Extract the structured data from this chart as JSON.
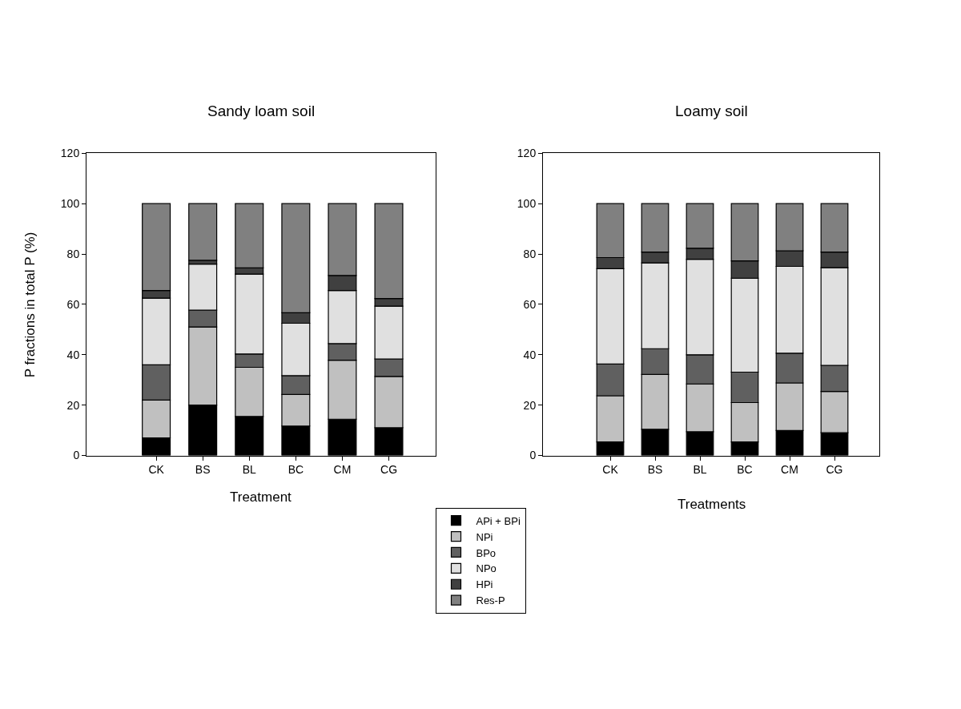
{
  "chart_data": [
    {
      "type": "bar",
      "title": "Sandy loam soil",
      "xlabel": "Treatment",
      "ylabel": "P fractions in total P (%)",
      "categories": [
        "CK",
        "BS",
        "BL",
        "BC",
        "CM",
        "CG"
      ],
      "stacked": true,
      "ylim": [
        0,
        120
      ],
      "yticks": [
        0,
        20,
        40,
        60,
        80,
        100,
        120
      ],
      "legend": "bottom",
      "series": [
        {
          "name": "APi + BPi",
          "color": "#000000",
          "values": [
            7,
            20,
            15.5,
            11.7,
            14.4,
            11
          ]
        },
        {
          "name": "NPi",
          "color": "#c0c0c0",
          "values": [
            15,
            31,
            19.5,
            12.5,
            23.4,
            20.4
          ]
        },
        {
          "name": "BPo",
          "color": "#606060",
          "values": [
            14,
            6.7,
            5.3,
            7.5,
            6.6,
            6.9
          ]
        },
        {
          "name": "NPo",
          "color": "#e0e0e0",
          "values": [
            26.5,
            18.3,
            31.7,
            20.8,
            21.1,
            21
          ]
        },
        {
          "name": "HPi",
          "color": "#404040",
          "values": [
            3,
            1.5,
            2.5,
            4.2,
            6,
            3
          ]
        },
        {
          "name": "Res-P",
          "color": "#808080",
          "values": [
            34.5,
            22.5,
            25.5,
            43.3,
            28.5,
            37.7
          ]
        }
      ]
    },
    {
      "type": "bar",
      "title": "Loamy soil",
      "xlabel": "Treatments",
      "categories": [
        "CK",
        "BS",
        "BL",
        "BC",
        "CM",
        "CG"
      ],
      "stacked": true,
      "ylim": [
        0,
        120
      ],
      "yticks": [
        0,
        20,
        40,
        60,
        80,
        100,
        120
      ],
      "series": [
        {
          "color": "#000000",
          "values": [
            5.4,
            10.4,
            9.4,
            5.4,
            9.9,
            9
          ]
        },
        {
          "color": "#c0c0c0",
          "values": [
            18.3,
            21.8,
            19,
            15.6,
            18.9,
            16.4
          ]
        },
        {
          "color": "#606060",
          "values": [
            12.6,
            10.2,
            11.6,
            12.1,
            11.8,
            10.4
          ]
        },
        {
          "color": "#e0e0e0",
          "values": [
            37.9,
            34.1,
            37.9,
            37.3,
            34.5,
            38.8
          ]
        },
        {
          "color": "#404040",
          "values": [
            4.4,
            4.3,
            4.4,
            6.9,
            6.2,
            6.2
          ]
        },
        {
          "color": "#808080",
          "values": [
            21.4,
            19.2,
            17.7,
            22.7,
            18.7,
            19.2
          ]
        }
      ]
    }
  ]
}
